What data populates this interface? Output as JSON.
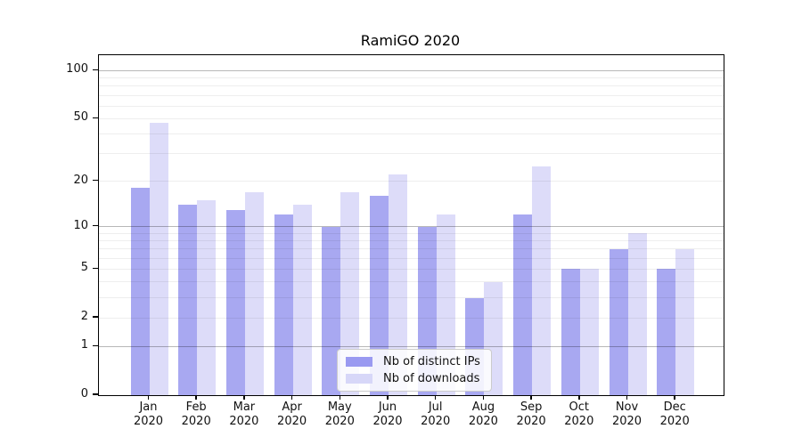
{
  "title": "RamiGO 2020",
  "legend": {
    "items": [
      {
        "label": "Nb of distinct IPs",
        "swatch_color": "#9a9af1"
      },
      {
        "label": "Nb of downloads",
        "swatch_color": "#d7d7f8"
      }
    ]
  },
  "colors": {
    "bar_distinct_ips": "#a8a8f1",
    "bar_downloads": "#dddcf9",
    "grid_major": "rgba(0,0,0,0.28)",
    "grid_minor": "rgba(0,0,0,0.065)",
    "axis_frame": "#000000"
  },
  "chart_data": {
    "type": "bar",
    "title": "RamiGO 2020",
    "categories": [
      "Jan",
      "Feb",
      "Mar",
      "Apr",
      "May",
      "Jun",
      "Jul",
      "Aug",
      "Sep",
      "Oct",
      "Nov",
      "Dec"
    ],
    "category_year": "2020",
    "series": [
      {
        "name": "Nb of distinct IPs",
        "color": "#a8a8f1",
        "values": [
          18,
          14,
          13,
          12,
          10,
          16,
          10,
          3,
          12,
          5,
          7,
          5
        ]
      },
      {
        "name": "Nb of downloads",
        "color": "#dddcf9",
        "values": [
          47,
          15,
          17,
          14,
          17,
          22,
          12,
          4,
          25,
          5,
          9,
          7
        ]
      }
    ],
    "xlabel": "",
    "ylabel": "",
    "yscale": "log1p",
    "yticks": [
      0,
      1,
      2,
      5,
      10,
      20,
      50,
      100
    ],
    "ylim": [
      0,
      125
    ],
    "grid_major_at": [
      1,
      10,
      100
    ],
    "grid_minor_at": [
      2,
      3,
      4,
      5,
      6,
      7,
      8,
      9,
      20,
      30,
      40,
      50,
      60,
      70,
      80,
      90
    ],
    "grid": "on",
    "legend_position": "lower center"
  }
}
